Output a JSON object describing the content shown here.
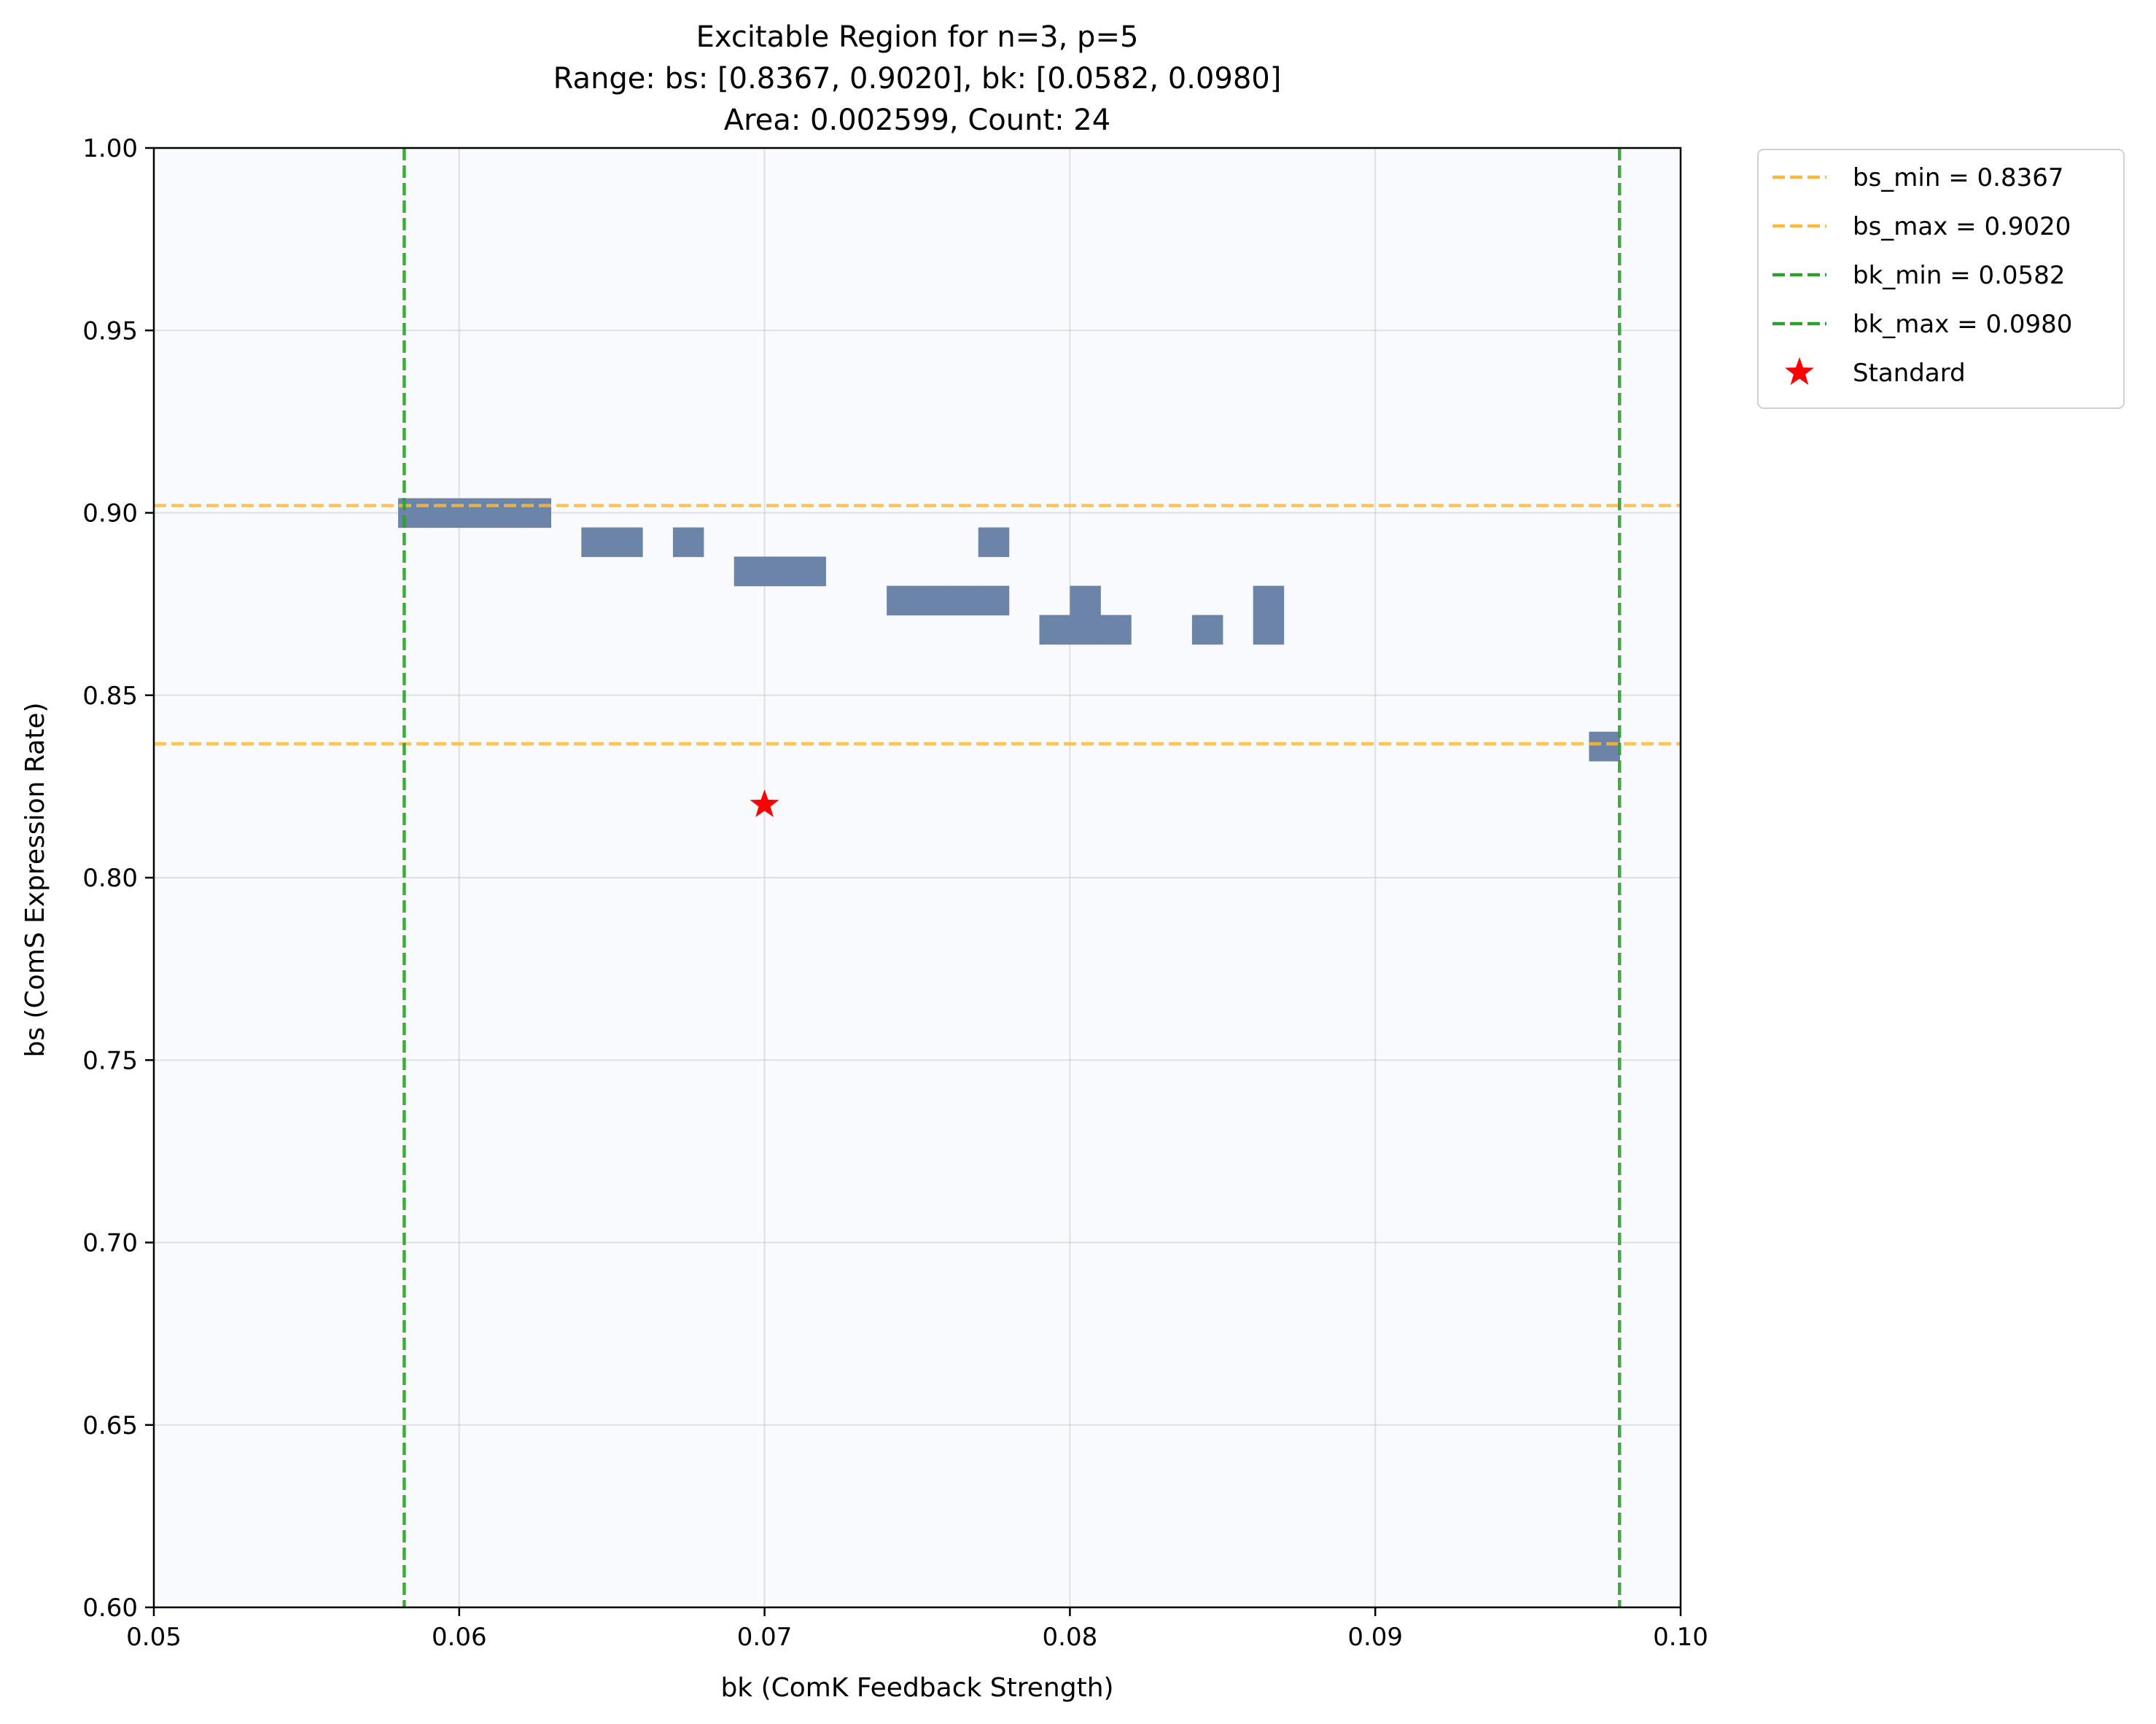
{
  "chart_data": {
    "type": "heatmap",
    "title_lines": [
      "Excitable Region for n=3, p=5",
      "Range: bs: [0.8367, 0.9020], bk: [0.0582, 0.0980]",
      "Area: 0.002599, Count: 24"
    ],
    "xlabel": "bk (ComK Feedback Strength)",
    "ylabel": "bs (ComS Expression Rate)",
    "xlim": [
      0.05,
      0.1
    ],
    "ylim": [
      0.6,
      1.0
    ],
    "x_ticks": [
      0.05,
      0.06,
      0.07,
      0.08,
      0.09,
      0.1
    ],
    "x_tick_labels": [
      "0.05",
      "0.06",
      "0.07",
      "0.08",
      "0.09",
      "0.10"
    ],
    "y_ticks": [
      0.6,
      0.65,
      0.7,
      0.75,
      0.8,
      0.85,
      0.9,
      0.95,
      1.0
    ],
    "y_tick_labels": [
      "0.60",
      "0.65",
      "0.70",
      "0.75",
      "0.80",
      "0.85",
      "0.90",
      "0.95",
      "1.00"
    ],
    "grid": true,
    "background_color": "#f8fafd",
    "cell_color": "#6b84a8",
    "cell_size": {
      "bk": 0.001,
      "bs": 0.008
    },
    "cells": [
      {
        "bk": 0.058,
        "bs": 0.896
      },
      {
        "bk": 0.059,
        "bs": 0.896
      },
      {
        "bk": 0.06,
        "bs": 0.896
      },
      {
        "bk": 0.061,
        "bs": 0.896
      },
      {
        "bk": 0.062,
        "bs": 0.896
      },
      {
        "bk": 0.064,
        "bs": 0.888
      },
      {
        "bk": 0.065,
        "bs": 0.888
      },
      {
        "bk": 0.067,
        "bs": 0.888
      },
      {
        "bk": 0.077,
        "bs": 0.888
      },
      {
        "bk": 0.069,
        "bs": 0.88
      },
      {
        "bk": 0.07,
        "bs": 0.88
      },
      {
        "bk": 0.071,
        "bs": 0.88
      },
      {
        "bk": 0.074,
        "bs": 0.872
      },
      {
        "bk": 0.075,
        "bs": 0.872
      },
      {
        "bk": 0.076,
        "bs": 0.872
      },
      {
        "bk": 0.077,
        "bs": 0.872
      },
      {
        "bk": 0.08,
        "bs": 0.872
      },
      {
        "bk": 0.079,
        "bs": 0.864
      },
      {
        "bk": 0.08,
        "bs": 0.864
      },
      {
        "bk": 0.081,
        "bs": 0.864
      },
      {
        "bk": 0.084,
        "bs": 0.864
      },
      {
        "bk": 0.086,
        "bs": 0.872
      },
      {
        "bk": 0.086,
        "bs": 0.864
      },
      {
        "bk": 0.097,
        "bs": 0.832
      }
    ],
    "reference_lines": [
      {
        "orientation": "horizontal",
        "value": 0.8367,
        "label": "bs_min = 0.8367",
        "color": "#ffb833"
      },
      {
        "orientation": "horizontal",
        "value": 0.902,
        "label": "bs_max = 0.9020",
        "color": "#ffb833"
      },
      {
        "orientation": "vertical",
        "value": 0.0582,
        "label": "bk_min = 0.0582",
        "color": "#2ca02c"
      },
      {
        "orientation": "vertical",
        "value": 0.098,
        "label": "bk_max = 0.0980",
        "color": "#2ca02c"
      }
    ],
    "marker": {
      "bk": 0.07,
      "bs": 0.82,
      "label": "Standard",
      "color": "#ff0000",
      "shape": "star"
    },
    "legend_placement": "outside upper right"
  }
}
